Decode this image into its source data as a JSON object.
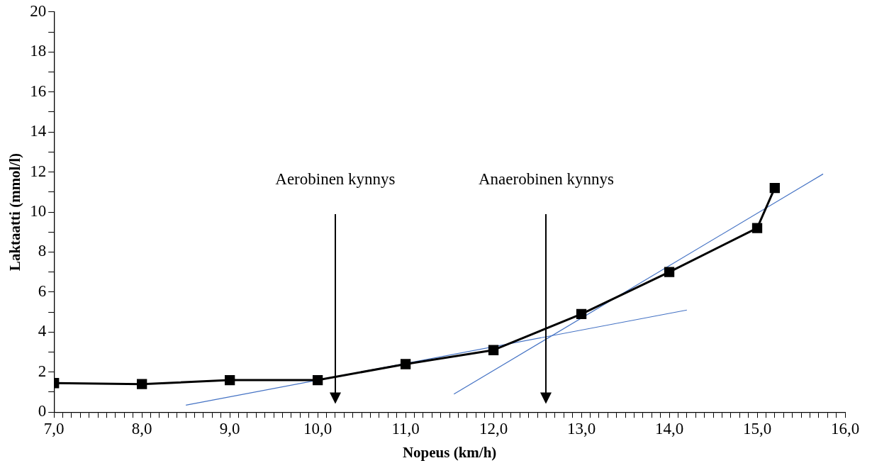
{
  "chart_data": {
    "type": "line",
    "xlabel": "Nopeus (km/h)",
    "ylabel": "Laktaatti (mmol/l)",
    "xlim": [
      7,
      16
    ],
    "ylim": [
      0,
      20
    ],
    "xticks": [
      {
        "value": 7,
        "label": "7,0"
      },
      {
        "value": 7.1,
        "label": null
      },
      {
        "value": 7.2,
        "label": null
      },
      {
        "value": 7.3,
        "label": null
      },
      {
        "value": 7.4,
        "label": null
      },
      {
        "value": 7.5,
        "label": null
      },
      {
        "value": 7.6,
        "label": null
      },
      {
        "value": 7.7,
        "label": null
      },
      {
        "value": 7.8,
        "label": null
      },
      {
        "value": 7.9,
        "label": null
      },
      {
        "value": 8,
        "label": "8,0"
      },
      {
        "value": 8.1,
        "label": null
      },
      {
        "value": 8.2,
        "label": null
      },
      {
        "value": 8.3,
        "label": null
      },
      {
        "value": 8.4,
        "label": null
      },
      {
        "value": 8.5,
        "label": null
      },
      {
        "value": 8.6,
        "label": null
      },
      {
        "value": 8.7,
        "label": null
      },
      {
        "value": 8.8,
        "label": null
      },
      {
        "value": 8.9,
        "label": null
      },
      {
        "value": 9,
        "label": "9,0"
      },
      {
        "value": 9.1,
        "label": null
      },
      {
        "value": 9.2,
        "label": null
      },
      {
        "value": 9.3,
        "label": null
      },
      {
        "value": 9.4,
        "label": null
      },
      {
        "value": 9.5,
        "label": null
      },
      {
        "value": 9.6,
        "label": null
      },
      {
        "value": 9.7,
        "label": null
      },
      {
        "value": 9.8,
        "label": null
      },
      {
        "value": 9.9,
        "label": null
      },
      {
        "value": 10,
        "label": "10,0"
      },
      {
        "value": 10.1,
        "label": null
      },
      {
        "value": 10.2,
        "label": null
      },
      {
        "value": 10.3,
        "label": null
      },
      {
        "value": 10.4,
        "label": null
      },
      {
        "value": 10.5,
        "label": null
      },
      {
        "value": 10.6,
        "label": null
      },
      {
        "value": 10.7,
        "label": null
      },
      {
        "value": 10.8,
        "label": null
      },
      {
        "value": 10.9,
        "label": null
      },
      {
        "value": 11,
        "label": "11,0"
      },
      {
        "value": 11.1,
        "label": null
      },
      {
        "value": 11.2,
        "label": null
      },
      {
        "value": 11.3,
        "label": null
      },
      {
        "value": 11.4,
        "label": null
      },
      {
        "value": 11.5,
        "label": null
      },
      {
        "value": 11.6,
        "label": null
      },
      {
        "value": 11.7,
        "label": null
      },
      {
        "value": 11.8,
        "label": null
      },
      {
        "value": 11.9,
        "label": null
      },
      {
        "value": 12,
        "label": "12,0"
      },
      {
        "value": 12.1,
        "label": null
      },
      {
        "value": 12.2,
        "label": null
      },
      {
        "value": 12.3,
        "label": null
      },
      {
        "value": 12.4,
        "label": null
      },
      {
        "value": 12.5,
        "label": null
      },
      {
        "value": 12.6,
        "label": null
      },
      {
        "value": 12.7,
        "label": null
      },
      {
        "value": 12.8,
        "label": null
      },
      {
        "value": 12.9,
        "label": null
      },
      {
        "value": 13,
        "label": "13,0"
      },
      {
        "value": 13.1,
        "label": null
      },
      {
        "value": 13.2,
        "label": null
      },
      {
        "value": 13.3,
        "label": null
      },
      {
        "value": 13.4,
        "label": null
      },
      {
        "value": 13.5,
        "label": null
      },
      {
        "value": 13.6,
        "label": null
      },
      {
        "value": 13.7,
        "label": null
      },
      {
        "value": 13.8,
        "label": null
      },
      {
        "value": 13.9,
        "label": null
      },
      {
        "value": 14,
        "label": "14,0"
      },
      {
        "value": 14.1,
        "label": null
      },
      {
        "value": 14.2,
        "label": null
      },
      {
        "value": 14.3,
        "label": null
      },
      {
        "value": 14.4,
        "label": null
      },
      {
        "value": 14.5,
        "label": null
      },
      {
        "value": 14.6,
        "label": null
      },
      {
        "value": 14.7,
        "label": null
      },
      {
        "value": 14.8,
        "label": null
      },
      {
        "value": 14.9,
        "label": null
      },
      {
        "value": 15,
        "label": "15,0"
      },
      {
        "value": 15.1,
        "label": null
      },
      {
        "value": 15.2,
        "label": null
      },
      {
        "value": 15.3,
        "label": null
      },
      {
        "value": 15.4,
        "label": null
      },
      {
        "value": 15.5,
        "label": null
      },
      {
        "value": 15.6,
        "label": null
      },
      {
        "value": 15.7,
        "label": null
      },
      {
        "value": 15.8,
        "label": null
      },
      {
        "value": 15.9,
        "label": null
      },
      {
        "value": 16,
        "label": "16,0"
      }
    ],
    "yticks": [
      0,
      {
        "value": 1,
        "label": null
      },
      2,
      {
        "value": 3,
        "label": null
      },
      4,
      {
        "value": 5,
        "label": null
      },
      6,
      {
        "value": 7,
        "label": null
      },
      8,
      {
        "value": 9,
        "label": null
      },
      10,
      {
        "value": 11,
        "label": null
      },
      12,
      {
        "value": 13,
        "label": null
      },
      14,
      {
        "value": 15,
        "label": null
      },
      16,
      {
        "value": 17,
        "label": null
      },
      18,
      {
        "value": 19,
        "label": null
      },
      20
    ],
    "series": [
      {
        "color": "#000000",
        "marker": "square",
        "x": [
          7,
          8,
          9,
          10,
          11,
          12,
          13,
          14,
          15,
          15.2
        ],
        "values": [
          1.45,
          1.4,
          1.6,
          1.6,
          2.4,
          3.1,
          4.9,
          7.0,
          9.2,
          11.2
        ]
      },
      {
        "color": "#4472c4",
        "marker": "none",
        "x": [
          8.5,
          14.2
        ],
        "values": [
          0.35,
          5.1
        ]
      },
      {
        "color": "#4472c4",
        "marker": "none",
        "x": [
          11.55,
          15.75
        ],
        "values": [
          0.9,
          11.9
        ]
      }
    ],
    "ref_lines": [
      {
        "axis": "x",
        "value": 10.2,
        "label": "Aerobinen kynnys",
        "color": "#000000"
      },
      {
        "axis": "x",
        "value": 12.6,
        "label": "Anaerobinen kynnys",
        "color": "#000000"
      }
    ],
    "grid": false,
    "legend": false
  }
}
